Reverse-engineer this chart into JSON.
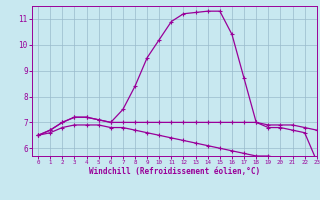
{
  "x": [
    0,
    1,
    2,
    3,
    4,
    5,
    6,
    7,
    8,
    9,
    10,
    11,
    12,
    13,
    14,
    15,
    16,
    17,
    18,
    19,
    20,
    21,
    22,
    23
  ],
  "curve1": [
    6.5,
    6.7,
    7.0,
    7.2,
    7.2,
    7.1,
    7.0,
    7.5,
    8.4,
    9.5,
    10.2,
    10.9,
    11.2,
    11.25,
    11.3,
    11.3,
    10.4,
    8.7,
    7.0,
    6.8,
    6.8,
    6.7,
    6.6,
    5.5
  ],
  "curve2": [
    6.5,
    6.7,
    7.0,
    7.2,
    7.2,
    7.1,
    7.0,
    7.0,
    7.0,
    7.0,
    7.0,
    7.0,
    7.0,
    7.0,
    7.0,
    7.0,
    7.0,
    7.0,
    7.0,
    6.9,
    6.9,
    6.9,
    6.8,
    6.7
  ],
  "curve3": [
    6.5,
    6.6,
    6.8,
    6.9,
    6.9,
    6.9,
    6.8,
    6.8,
    6.7,
    6.6,
    6.5,
    6.4,
    6.3,
    6.2,
    6.1,
    6.0,
    5.9,
    5.8,
    5.7,
    5.7,
    5.6,
    5.6,
    5.6,
    5.5
  ],
  "color": "#990099",
  "bg_color": "#c8e8f0",
  "grid_color": "#99bbcc",
  "xlabel": "Windchill (Refroidissement éolien,°C)",
  "ylim": [
    5.7,
    11.5
  ],
  "xlim": [
    -0.5,
    23
  ],
  "yticks": [
    6,
    7,
    8,
    9,
    10,
    11
  ],
  "xticks": [
    0,
    1,
    2,
    3,
    4,
    5,
    6,
    7,
    8,
    9,
    10,
    11,
    12,
    13,
    14,
    15,
    16,
    17,
    18,
    19,
    20,
    21,
    22,
    23
  ],
  "marker": "+",
  "markersize": 3,
  "linewidth": 0.9
}
